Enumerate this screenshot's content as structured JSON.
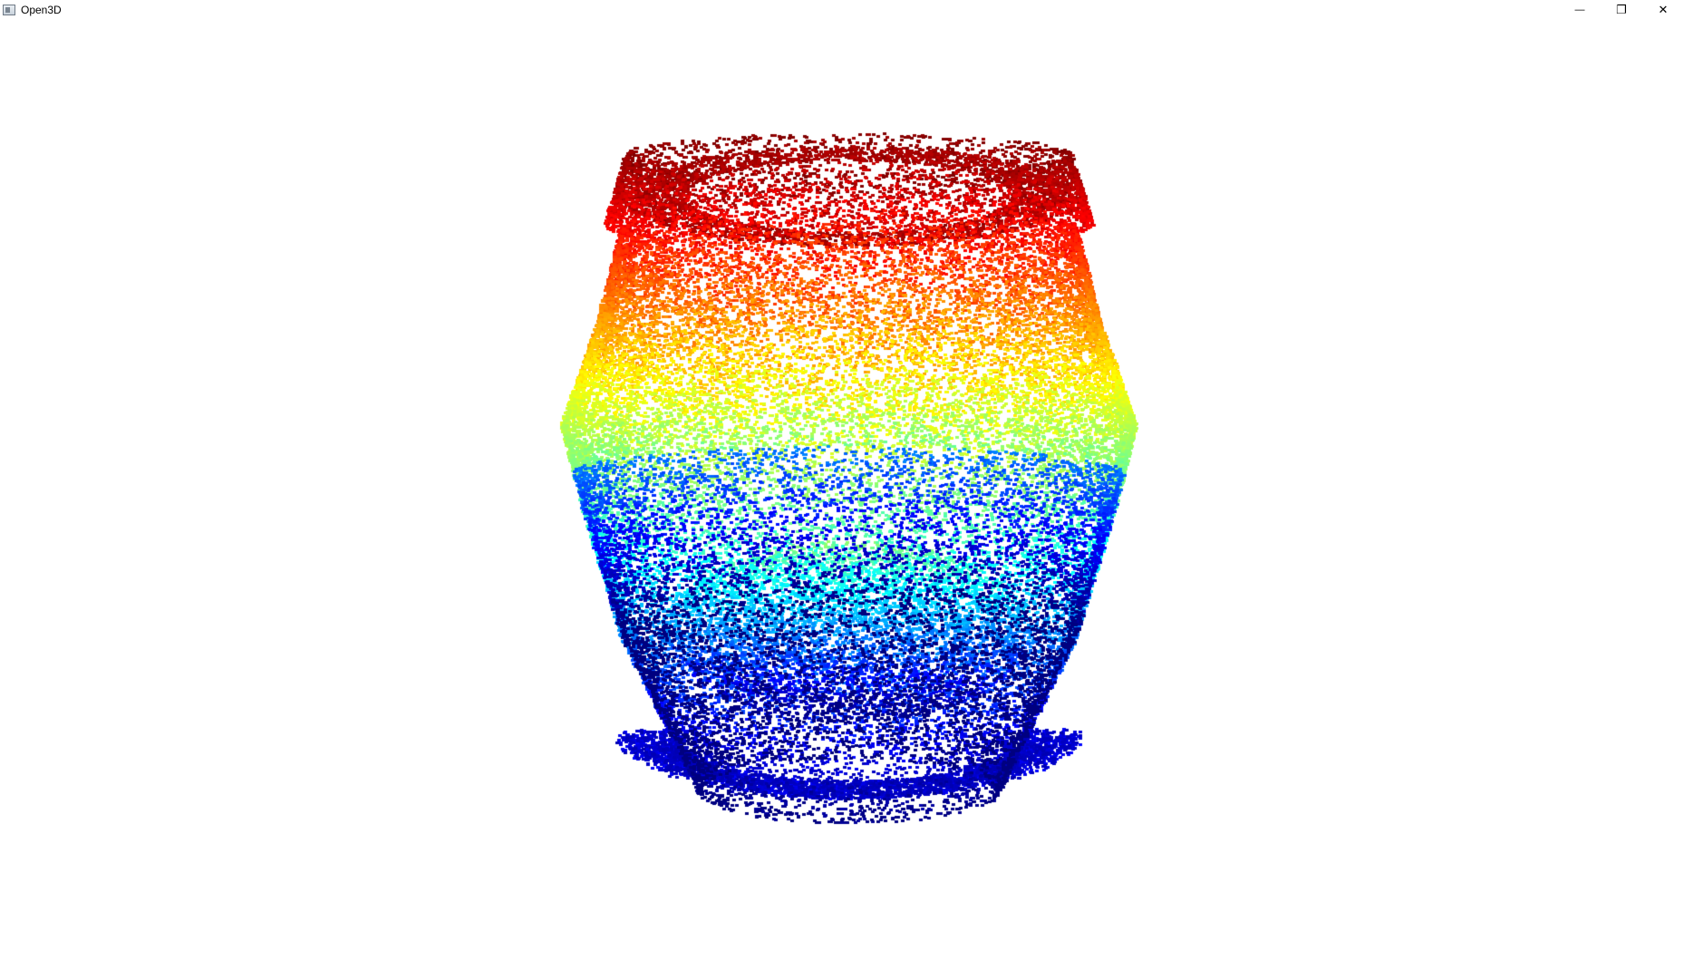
{
  "window": {
    "title": "Open3D",
    "app_icon": "window-app-icon",
    "controls": {
      "minimize_icon": "minimize-icon",
      "restore_icon": "restore-icon",
      "close_icon": "close-icon",
      "minimize_glyph": "—",
      "restore_glyph": "❐",
      "close_glyph": "✕"
    }
  },
  "viewport": {
    "background": "#ffffff",
    "content": "point-cloud",
    "colormap": "jet"
  }
}
